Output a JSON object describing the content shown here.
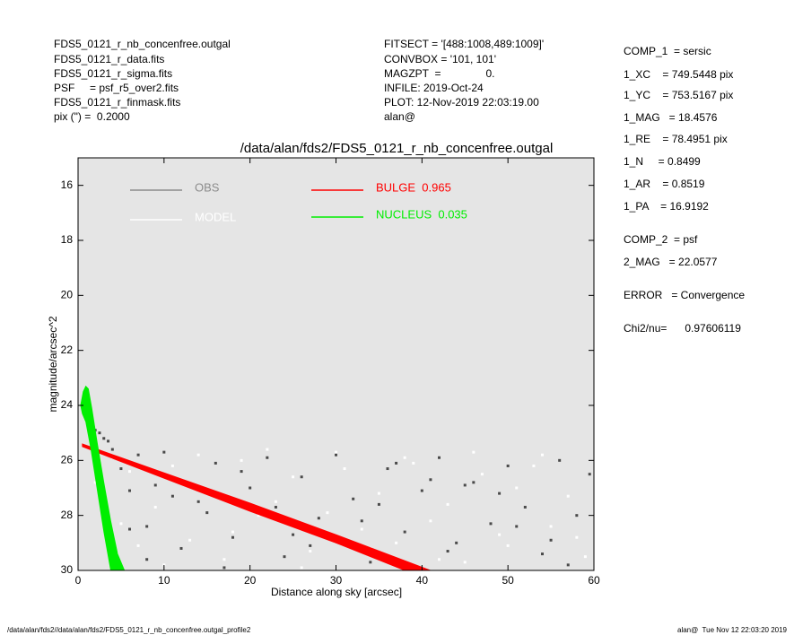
{
  "header_left": [
    "FDS5_0121_r_nb_concenfree.outgal",
    "FDS5_0121_r_data.fits",
    "FDS5_0121_r_sigma.fits",
    "PSF     = psf_r5_over2.fits",
    "FDS5_0121_r_finmask.fits",
    "pix (\") =  0.2000"
  ],
  "header_mid": [
    "FITSECT = '[488:1008,489:1009]'",
    "CONVBOX = '101, 101'",
    "MAGZPT  =               0.",
    "INFILE: 2019-Oct-24",
    "PLOT: 12-Nov-2019 22:03:19.00",
    "alan@"
  ],
  "header_right": [
    "COMP_1  = sersic",
    "1_XC    = 749.5448 pix",
    "1_YC    = 753.5167 pix",
    "1_MAG   = 18.4576",
    "1_RE    = 78.4951 pix",
    "1_N     = 0.8499",
    "1_AR    = 0.8519",
    "1_PA    = 16.9192",
    "COMP_2  = psf",
    "2_MAG   = 22.0577",
    "ERROR   = Convergence",
    "Chi2/nu=      0.97606119"
  ],
  "footer_left": "/data/alan/fds2//data/alan/fds2/FDS5_0121_r_nb_concenfree.outgal_profile2",
  "footer_right": "alan@  Tue Nov 12 22:03:20 2019",
  "chart_data": {
    "type": "scatter",
    "title": "/data/alan/fds2/FDS5_0121_r_nb_concenfree.outgal",
    "xlabel": "Distance along sky [arcsec]",
    "ylabel": "magnitude/arcsec^2",
    "xlim": [
      0,
      60
    ],
    "ylim": [
      30,
      15
    ],
    "xticks": [
      0,
      10,
      20,
      30,
      40,
      50,
      60
    ],
    "yticks": [
      16,
      18,
      20,
      22,
      24,
      26,
      28,
      30
    ],
    "series": [
      {
        "name": "OBS",
        "color": "#4a4a4a",
        "legend_color": "#8c8c8c",
        "kind": "points",
        "x": [
          0.8,
          1.2,
          1.6,
          2,
          2.5,
          3,
          3.5,
          4,
          5,
          6,
          7,
          8,
          9,
          10,
          12,
          14,
          16,
          18,
          20,
          22,
          24,
          26,
          28,
          30,
          32,
          34,
          36,
          38,
          40,
          42,
          44,
          46,
          48,
          50,
          52,
          54,
          56,
          58,
          59.5,
          3,
          8,
          15,
          25,
          35,
          45,
          55,
          11,
          19,
          27,
          33,
          41,
          49,
          57,
          6,
          17,
          23,
          37,
          43,
          51
        ],
        "values": [
          24.1,
          24.4,
          24.7,
          24.9,
          25.0,
          25.2,
          25.3,
          25.6,
          26.3,
          27.1,
          25.8,
          28.4,
          26.9,
          25.7,
          29.2,
          27.5,
          26.1,
          28.8,
          27.0,
          25.9,
          29.5,
          26.6,
          28.1,
          25.8,
          27.4,
          29.7,
          26.3,
          28.6,
          27.1,
          25.9,
          29.0,
          26.8,
          28.3,
          26.2,
          27.7,
          29.4,
          26.0,
          28.0,
          26.5,
          27.8,
          29.6,
          27.9,
          28.7,
          27.6,
          26.9,
          28.9,
          27.3,
          26.4,
          29.1,
          28.2,
          26.7,
          27.2,
          29.8,
          28.5,
          29.9,
          27.7,
          26.1,
          29.3,
          28.4
        ]
      },
      {
        "name": "MODEL",
        "color": "#ffffff",
        "legend_color": "#ffffff",
        "kind": "points",
        "x": [
          2,
          3,
          4,
          5,
          6,
          7,
          9,
          11,
          13,
          15,
          17,
          19,
          21,
          23,
          25,
          27,
          29,
          31,
          33,
          35,
          37,
          39,
          41,
          43,
          45,
          47,
          49,
          51,
          53,
          55,
          57,
          59,
          4.5,
          10,
          18,
          26,
          34,
          42,
          50,
          58,
          14,
          22,
          30,
          38,
          46,
          54
        ],
        "values": [
          26.8,
          27.4,
          25.9,
          28.3,
          26.4,
          29.1,
          27.7,
          26.2,
          28.9,
          27.1,
          29.6,
          26.0,
          28.0,
          27.5,
          26.6,
          29.3,
          27.9,
          26.3,
          28.5,
          27.2,
          29.0,
          26.1,
          28.2,
          27.6,
          29.7,
          26.5,
          28.7,
          27.0,
          26.2,
          28.4,
          27.3,
          29.5,
          29.4,
          29.8,
          28.6,
          29.9,
          29.2,
          29.6,
          29.1,
          28.8,
          25.8,
          25.6,
          25.7,
          25.9,
          25.7,
          25.8
        ]
      },
      {
        "name": "BULGE  0.965",
        "color": "#ff0000",
        "kind": "band",
        "x": [
          0.5,
          10,
          20,
          30,
          41,
          38,
          30,
          20,
          10,
          0.5
        ],
        "values": [
          25.4,
          26.45,
          27.55,
          28.7,
          30,
          30,
          29.0,
          27.85,
          26.65,
          25.5
        ]
      },
      {
        "name": "NUCLEUS  0.035",
        "color": "#00ee00",
        "kind": "band",
        "x": [
          0.3,
          0.6,
          0.9,
          1.2,
          1.6,
          2.2,
          3.0,
          3.8,
          4.6,
          5.4,
          3.8,
          3.0,
          2.2,
          1.5,
          0.9,
          0.5,
          0.3
        ],
        "values": [
          24.0,
          23.5,
          23.3,
          23.4,
          24.1,
          25.3,
          26.8,
          28.2,
          29.4,
          30,
          30,
          28.6,
          27.0,
          25.6,
          24.6,
          24.3,
          24.0
        ]
      }
    ]
  }
}
